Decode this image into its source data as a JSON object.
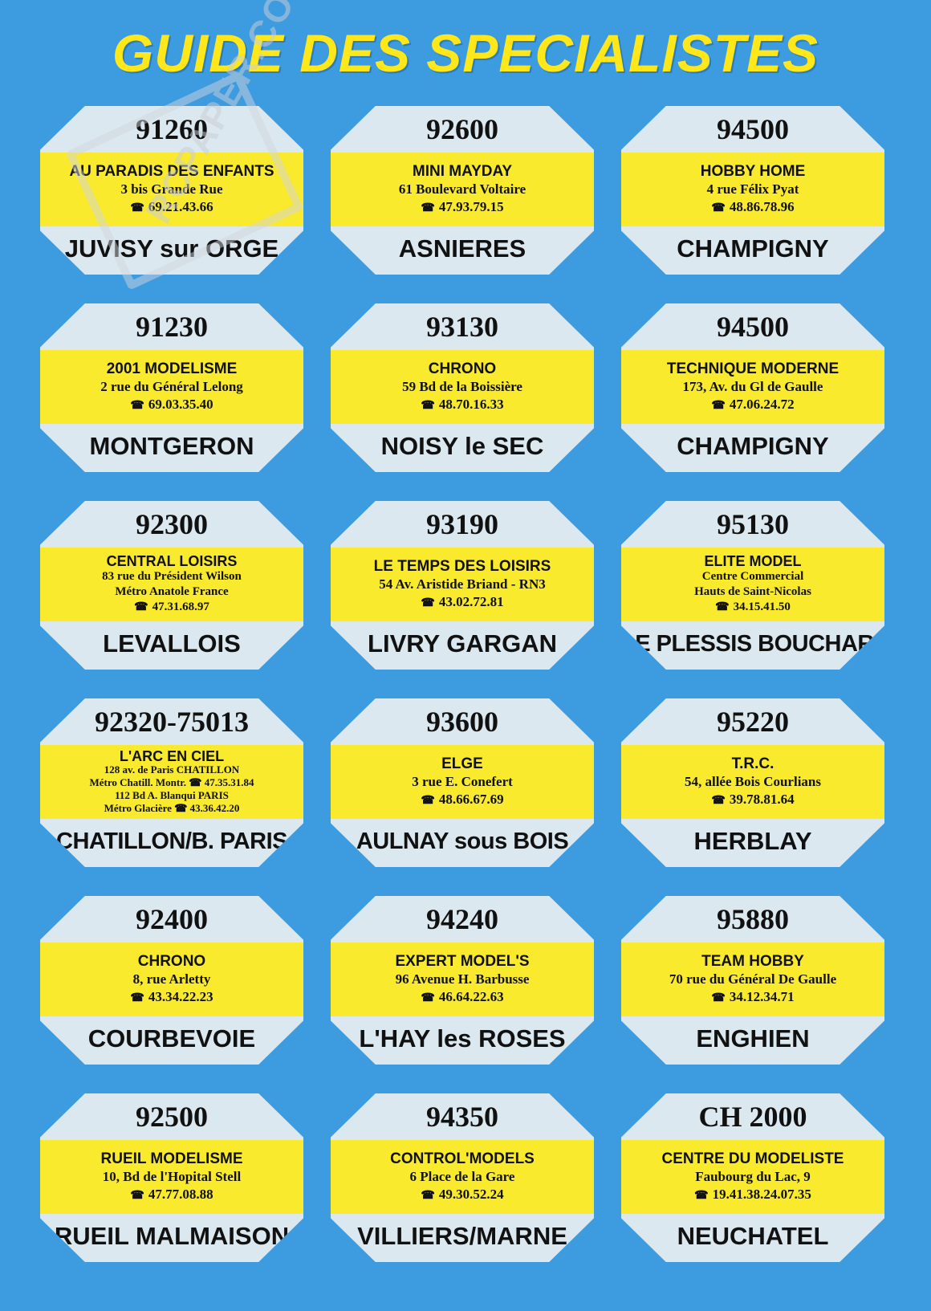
{
  "title": "GUIDE DES SPECIALISTES",
  "phone_icon": "telephone-icon",
  "watermark": "RCPAPER.COM",
  "colors": {
    "background": "#3d9be0",
    "title": "#ffe71a",
    "band": "#f9ea2e",
    "card": "#dbe8ef"
  },
  "shops": [
    {
      "code": "91260",
      "name": "AU PARADIS DES ENFANTS",
      "lines": [
        "3 bis Grande Rue"
      ],
      "phones": [
        "69.21.43.66"
      ],
      "city": "JUVISY sur ORGE"
    },
    {
      "code": "92600",
      "name": "MINI MAYDAY",
      "lines": [
        "61 Boulevard Voltaire"
      ],
      "phones": [
        "47.93.79.15"
      ],
      "city": "ASNIERES"
    },
    {
      "code": "94500",
      "name": "HOBBY HOME",
      "lines": [
        "4 rue Félix Pyat"
      ],
      "phones": [
        "48.86.78.96"
      ],
      "city": "CHAMPIGNY"
    },
    {
      "code": "91230",
      "name": "2001 MODELISME",
      "lines": [
        "2 rue du Général Lelong"
      ],
      "phones": [
        "69.03.35.40"
      ],
      "city": "MONTGERON"
    },
    {
      "code": "93130",
      "name": "CHRONO",
      "lines": [
        "59 Bd de la Boissière"
      ],
      "phones": [
        "48.70.16.33"
      ],
      "city": "NOISY le SEC"
    },
    {
      "code": "94500",
      "name": "TECHNIQUE MODERNE",
      "lines": [
        "173, Av. du Gl de Gaulle"
      ],
      "phones": [
        "47.06.24.72"
      ],
      "city": "CHAMPIGNY"
    },
    {
      "code": "92300",
      "name": "CENTRAL LOISIRS",
      "lines": [
        "83 rue du Président Wilson",
        "Métro Anatole France"
      ],
      "phones": [
        "47.31.68.97"
      ],
      "city": "LEVALLOIS"
    },
    {
      "code": "93190",
      "name": "LE TEMPS DES LOISIRS",
      "lines": [
        "54 Av. Aristide Briand - RN3"
      ],
      "phones": [
        "43.02.72.81"
      ],
      "city": "LIVRY GARGAN"
    },
    {
      "code": "95130",
      "name": "ELITE MODEL",
      "lines": [
        "Centre Commercial",
        "Hauts de Saint-Nicolas"
      ],
      "phones": [
        "34.15.41.50"
      ],
      "city": "LE PLESSIS BOUCHARD"
    },
    {
      "code": "92320-75013",
      "name": "L'ARC EN CIEL",
      "lines": [
        "128 av. de Paris CHATILLON",
        "Métro Chatill. Montr. ☎ 47.35.31.84",
        "112 Bd A. Blanqui PARIS",
        "Métro Glacière ☎ 43.36.42.20"
      ],
      "phones": [],
      "city": "CHATILLON/B. PARIS"
    },
    {
      "code": "93600",
      "name": "ELGE",
      "lines": [
        "3 rue E. Conefert"
      ],
      "phones": [
        "48.66.67.69"
      ],
      "city": "AULNAY sous BOIS"
    },
    {
      "code": "95220",
      "name": "T.R.C.",
      "lines": [
        "54, allée Bois Courlians"
      ],
      "phones": [
        "39.78.81.64"
      ],
      "city": "HERBLAY"
    },
    {
      "code": "92400",
      "name": "CHRONO",
      "lines": [
        "8, rue Arletty"
      ],
      "phones": [
        "43.34.22.23"
      ],
      "city": "COURBEVOIE"
    },
    {
      "code": "94240",
      "name": "EXPERT MODEL'S",
      "lines": [
        "96 Avenue H. Barbusse"
      ],
      "phones": [
        "46.64.22.63"
      ],
      "city": "L'HAY les ROSES"
    },
    {
      "code": "95880",
      "name": "TEAM HOBBY",
      "lines": [
        "70 rue du Général De Gaulle"
      ],
      "phones": [
        "34.12.34.71"
      ],
      "city": "ENGHIEN"
    },
    {
      "code": "92500",
      "name": "RUEIL MODELISME",
      "lines": [
        "10, Bd de l'Hopital Stell"
      ],
      "phones": [
        "47.77.08.88"
      ],
      "city": "RUEIL MALMAISON"
    },
    {
      "code": "94350",
      "name": "CONTROL'MODELS",
      "lines": [
        "6 Place de la Gare"
      ],
      "phones": [
        "49.30.52.24"
      ],
      "city": "VILLIERS/MARNE"
    },
    {
      "code": "CH 2000",
      "name": "CENTRE DU MODELISTE",
      "lines": [
        "Faubourg du Lac, 9"
      ],
      "phones": [
        "19.41.38.24.07.35"
      ],
      "city": "NEUCHATEL"
    }
  ]
}
